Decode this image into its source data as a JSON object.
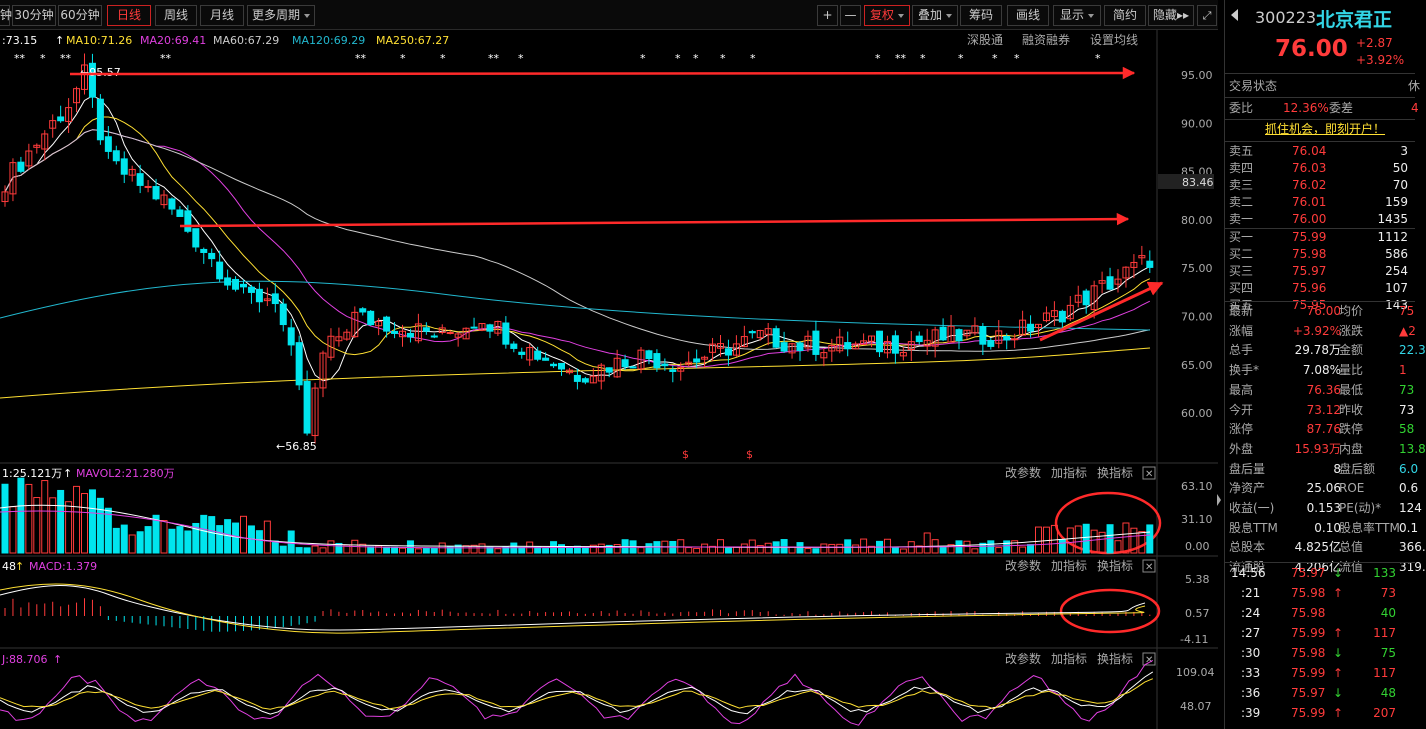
{
  "toolbar": {
    "left_items": [
      "钟",
      "30分钟",
      "60分钟",
      "日线",
      "周线",
      "月线",
      "更多周期"
    ],
    "active": "日线",
    "plus": "+",
    "minus": "—",
    "right_items": [
      "复权",
      "叠加",
      "筹码",
      "画线",
      "显示",
      "简约",
      "隐藏"
    ],
    "hide_arrows": "▸▸"
  },
  "ma_legend": {
    "ma5": ":73.15",
    "ma10": "MA10:71.26",
    "ma20": "MA20:69.41",
    "ma60": "MA60:67.29",
    "ma120": "MA120:69.29",
    "ma250": "MA250:67.27",
    "links": [
      "深股通",
      "融资融券",
      "设置均线"
    ]
  },
  "price_axis": [
    "95.00",
    "90.00",
    "85.00",
    "80.00",
    "75.00",
    "70.00",
    "65.00",
    "60.00"
  ],
  "current_price_tag": "83.46",
  "high_label": "95.57",
  "low_label": "56.85",
  "vol_panel": {
    "legend1": "1:25.121万",
    "legend2": "MAVOL2:21.280万",
    "axis": [
      "63.10",
      "31.10",
      "0.00"
    ],
    "buttons": [
      "改参数",
      "加指标",
      "换指标"
    ]
  },
  "macd_panel": {
    "legend1": "48",
    "legend2": "MACD:1.379",
    "axis": [
      "5.38",
      "0.57",
      "-4.11"
    ],
    "buttons": [
      "改参数",
      "加指标",
      "换指标"
    ]
  },
  "kdj_panel": {
    "legend1": "J:88.706",
    "axis": [
      "109.04",
      "48.07"
    ],
    "buttons": [
      "改参数",
      "加指标",
      "换指标"
    ]
  },
  "close_glyph": "✕",
  "stock": {
    "code": "300223",
    "name": "北京君正",
    "price": "76.00",
    "change": "+2.87",
    "pct": "+3.92%"
  },
  "trade_status": {
    "label": "交易状态",
    "right": "休"
  },
  "weibi": {
    "label": "委比",
    "value": "12.36%",
    "label2": "委差",
    "value2": "4"
  },
  "ad": "抓住机会，即刻开户！",
  "asks": [
    {
      "label": "卖五",
      "price": "76.04",
      "vol": "3"
    },
    {
      "label": "卖四",
      "price": "76.03",
      "vol": "50"
    },
    {
      "label": "卖三",
      "price": "76.02",
      "vol": "70"
    },
    {
      "label": "卖二",
      "price": "76.01",
      "vol": "159"
    },
    {
      "label": "卖一",
      "price": "76.00",
      "vol": "1435"
    }
  ],
  "bids": [
    {
      "label": "买一",
      "price": "75.99",
      "vol": "1112"
    },
    {
      "label": "买二",
      "price": "75.98",
      "vol": "586"
    },
    {
      "label": "买三",
      "price": "75.97",
      "vol": "254"
    },
    {
      "label": "买四",
      "price": "75.96",
      "vol": "107"
    },
    {
      "label": "买五",
      "price": "75.95",
      "vol": "143"
    }
  ],
  "quote": [
    {
      "l1": "最新",
      "v1": "76.00",
      "c1": "red",
      "l2": "均价",
      "v2": "75",
      "c2": "red"
    },
    {
      "l1": "涨幅",
      "v1": "+3.92%",
      "c1": "red",
      "l2": "涨跌",
      "v2": "▲2",
      "c2": "red"
    },
    {
      "l1": "总手",
      "v1": "29.78万",
      "c1": "wht",
      "l2": "金额",
      "v2": "22.3",
      "c2": "cy"
    },
    {
      "l1": "换手*",
      "v1": "7.08%",
      "c1": "wht",
      "l2": "量比",
      "v2": "1",
      "c2": "red"
    },
    {
      "l1": "最高",
      "v1": "76.36",
      "c1": "red",
      "l2": "最低",
      "v2": "73",
      "c2": "grn"
    },
    {
      "l1": "今开",
      "v1": "73.12",
      "c1": "red",
      "l2": "昨收",
      "v2": "73",
      "c2": "wht"
    },
    {
      "l1": "涨停",
      "v1": "87.76",
      "c1": "red",
      "l2": "跌停",
      "v2": "58",
      "c2": "grn"
    },
    {
      "l1": "外盘",
      "v1": "15.93万",
      "c1": "red",
      "l2": "内盘",
      "v2": "13.8",
      "c2": "grn"
    },
    {
      "l1": "盘后量",
      "v1": "8",
      "c1": "wht",
      "l2": "盘后额",
      "v2": "6.0",
      "c2": "cy"
    },
    {
      "l1": "净资产",
      "v1": "25.06",
      "c1": "wht",
      "l2": "ROE",
      "v2": "0.6",
      "c2": "wht"
    },
    {
      "l1": "收益(一)",
      "v1": "0.153",
      "c1": "wht",
      "l2": "PE(动)*",
      "v2": "124",
      "c2": "wht"
    },
    {
      "l1": "股息TTM",
      "v1": "0.10",
      "c1": "wht",
      "l2": "股息率TTM",
      "v2": "0.1",
      "c2": "wht"
    },
    {
      "l1": "总股本",
      "v1": "4.825亿",
      "c1": "wht",
      "l2": "总值",
      "v2": "366.",
      "c2": "wht"
    },
    {
      "l1": "流通股",
      "v1": "4.206亿",
      "c1": "wht",
      "l2": "流值",
      "v2": "319.",
      "c2": "wht"
    }
  ],
  "ticks": [
    {
      "time": "14:56",
      "price": "75.97",
      "dir": "↓",
      "vol": "133",
      "col": "grn"
    },
    {
      "time": ":21",
      "price": "75.98",
      "dir": "↑",
      "vol": "73",
      "col": "red"
    },
    {
      "time": ":24",
      "price": "75.98",
      "dir": "",
      "vol": "40",
      "col": "grn"
    },
    {
      "time": ":27",
      "price": "75.99",
      "dir": "↑",
      "vol": "117",
      "col": "red"
    },
    {
      "time": ":30",
      "price": "75.98",
      "dir": "↓",
      "vol": "75",
      "col": "grn"
    },
    {
      "time": ":33",
      "price": "75.99",
      "dir": "↑",
      "vol": "117",
      "col": "red"
    },
    {
      "time": ":36",
      "price": "75.97",
      "dir": "↓",
      "vol": "48",
      "col": "grn"
    },
    {
      "time": ":39",
      "price": "75.99",
      "dir": "↑",
      "vol": "207",
      "col": "red"
    }
  ],
  "colors": {
    "up": "#ff3b3b",
    "down": "#00e5ee",
    "ma5": "#ffffff",
    "ma10": "#ffe033",
    "ma20": "#e040e0",
    "ma60": "#cccccc",
    "ma120": "#22b8cf",
    "ma250": "#ffe033"
  }
}
